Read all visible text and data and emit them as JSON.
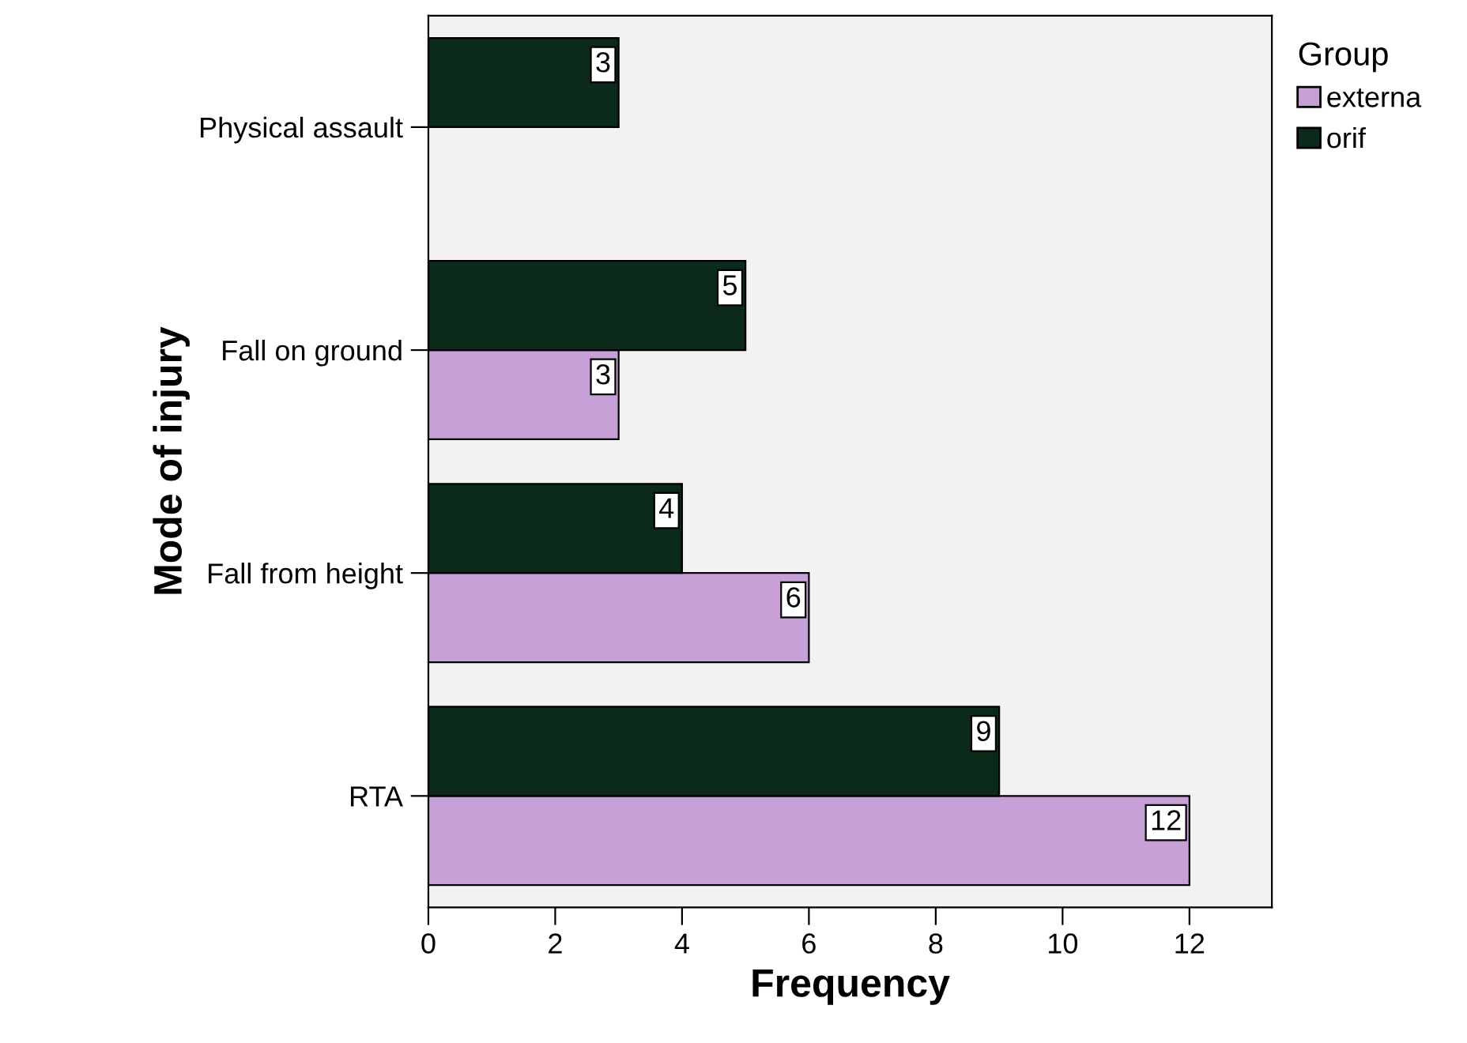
{
  "chart_data": {
    "type": "bar",
    "orientation": "horizontal",
    "xlabel": "Frequency",
    "ylabel": "Mode of injury",
    "legend_title": "Group",
    "categories": [
      "Physical assault",
      "Fall on ground",
      "Fall from height",
      "RTA"
    ],
    "series": [
      {
        "name": "externa",
        "color": "#c8a0d8",
        "values": [
          null,
          3,
          6,
          12
        ]
      },
      {
        "name": "orif",
        "color": "#0c2a1a",
        "values": [
          3,
          5,
          4,
          9
        ]
      }
    ],
    "xlim": [
      0,
      13.3
    ],
    "xticks": [
      0,
      2,
      4,
      6,
      8,
      10,
      12
    ],
    "data_labels": true,
    "grid": false,
    "legend": "top right"
  }
}
